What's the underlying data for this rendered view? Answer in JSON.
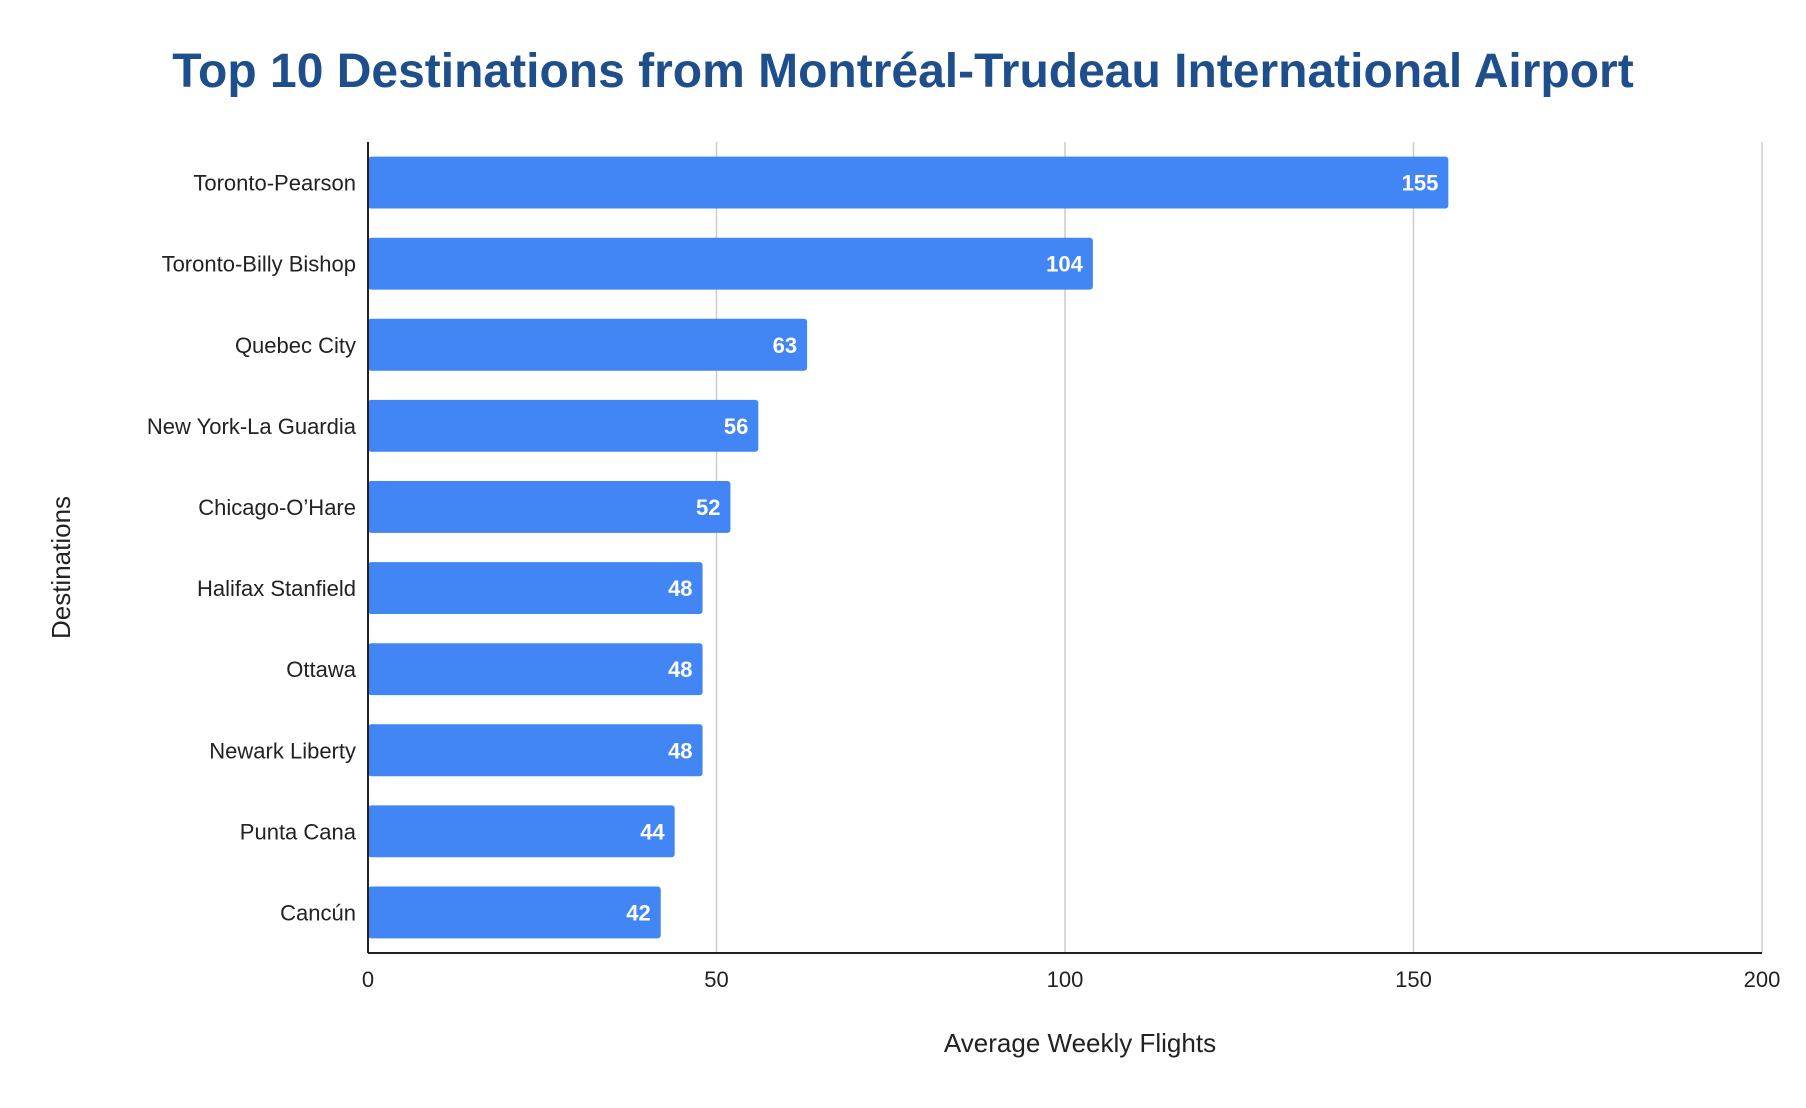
{
  "chart_data": {
    "type": "bar",
    "orientation": "horizontal",
    "title": "Top 10 Destinations from Montréal-Trudeau International Airport",
    "xlabel": "Average Weekly Flights",
    "ylabel": "Destinations",
    "categories": [
      "Toronto-Pearson",
      "Toronto-Billy Bishop",
      "Quebec City",
      "New York-La Guardia",
      "Chicago-O’Hare",
      "Halifax Stanfield",
      "Ottawa",
      "Newark Liberty",
      "Punta Cana",
      "Cancún"
    ],
    "values": [
      155,
      104,
      63,
      56,
      52,
      48,
      48,
      48,
      44,
      42
    ],
    "xlim": [
      0,
      200
    ],
    "xticks": [
      "0",
      "50",
      "100",
      "150",
      "200"
    ],
    "grid": "vertical",
    "legend": "none",
    "data_labels": true,
    "bar_color": "#4285f4",
    "title_color": "#1f4e8c",
    "label_color": "#ffffff"
  }
}
